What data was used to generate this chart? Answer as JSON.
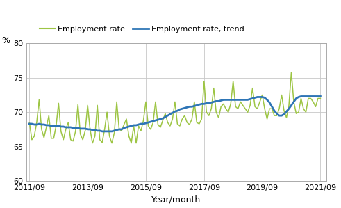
{
  "ylabel": "%",
  "xlabel": "Year/month",
  "ylim": [
    60,
    80
  ],
  "yticks": [
    60,
    65,
    70,
    75,
    80
  ],
  "xtick_labels": [
    "2011/09",
    "2013/09",
    "2015/09",
    "2017/09",
    "2019/09",
    "2021/09"
  ],
  "employment_rate_color": "#9dc544",
  "trend_color": "#2e75b6",
  "employment_rate_lw": 1.1,
  "trend_lw": 2.0,
  "legend_rate_label": "Employment rate",
  "legend_trend_label": "Employment rate, trend",
  "employment_rate": [
    68.5,
    66.0,
    66.5,
    68.5,
    71.8,
    67.5,
    66.3,
    67.8,
    69.5,
    66.2,
    66.2,
    68.0,
    71.3,
    67.2,
    66.0,
    67.5,
    68.5,
    66.0,
    65.8,
    67.2,
    71.1,
    66.8,
    66.0,
    67.3,
    71.0,
    67.5,
    65.5,
    66.5,
    71.0,
    66.0,
    65.6,
    67.5,
    70.0,
    66.5,
    65.5,
    67.0,
    71.5,
    67.5,
    67.3,
    68.2,
    69.0,
    66.5,
    65.5,
    68.0,
    65.5,
    68.0,
    67.3,
    68.8,
    71.5,
    68.0,
    67.5,
    68.5,
    71.5,
    68.2,
    67.8,
    68.8,
    69.8,
    68.5,
    68.0,
    69.0,
    71.5,
    68.3,
    68.0,
    69.0,
    69.5,
    68.5,
    68.2,
    69.0,
    71.5,
    68.5,
    68.3,
    69.0,
    74.5,
    70.0,
    69.5,
    70.5,
    73.5,
    70.0,
    69.2,
    70.8,
    71.2,
    70.5,
    70.0,
    71.2,
    74.5,
    70.8,
    70.5,
    71.5,
    71.0,
    70.5,
    70.0,
    71.0,
    73.5,
    70.8,
    70.5,
    71.5,
    72.5,
    70.5,
    69.0,
    70.5,
    70.5,
    69.5,
    69.5,
    70.5,
    72.5,
    70.2,
    69.2,
    71.0,
    75.8,
    71.5,
    69.8,
    70.0,
    72.0,
    70.5,
    70.0,
    72.0,
    72.0,
    71.5,
    70.8,
    72.0,
    72.0
  ],
  "trend": [
    68.3,
    68.3,
    68.2,
    68.2,
    68.3,
    68.2,
    68.2,
    68.1,
    68.1,
    68.0,
    68.0,
    68.0,
    68.0,
    67.9,
    67.9,
    67.8,
    67.8,
    67.8,
    67.7,
    67.7,
    67.7,
    67.6,
    67.6,
    67.6,
    67.5,
    67.5,
    67.4,
    67.4,
    67.3,
    67.3,
    67.2,
    67.2,
    67.2,
    67.2,
    67.2,
    67.3,
    67.4,
    67.5,
    67.5,
    67.7,
    67.8,
    67.9,
    68.0,
    68.1,
    68.1,
    68.2,
    68.3,
    68.3,
    68.4,
    68.5,
    68.6,
    68.7,
    68.8,
    68.9,
    69.0,
    69.1,
    69.3,
    69.5,
    69.7,
    69.9,
    70.1,
    70.2,
    70.4,
    70.5,
    70.6,
    70.7,
    70.8,
    70.8,
    70.9,
    71.0,
    71.1,
    71.2,
    71.2,
    71.3,
    71.3,
    71.4,
    71.5,
    71.6,
    71.6,
    71.7,
    71.8,
    71.8,
    71.8,
    71.8,
    71.8,
    71.8,
    71.8,
    71.8,
    71.8,
    71.8,
    71.8,
    71.9,
    72.0,
    72.1,
    72.2,
    72.2,
    72.2,
    72.1,
    71.8,
    71.4,
    70.8,
    70.2,
    69.8,
    69.5,
    69.5,
    69.7,
    70.1,
    70.5,
    71.0,
    71.5,
    72.0,
    72.2,
    72.3,
    72.3,
    72.3,
    72.3,
    72.3,
    72.3,
    72.3,
    72.3,
    72.3
  ],
  "n_points": 121
}
